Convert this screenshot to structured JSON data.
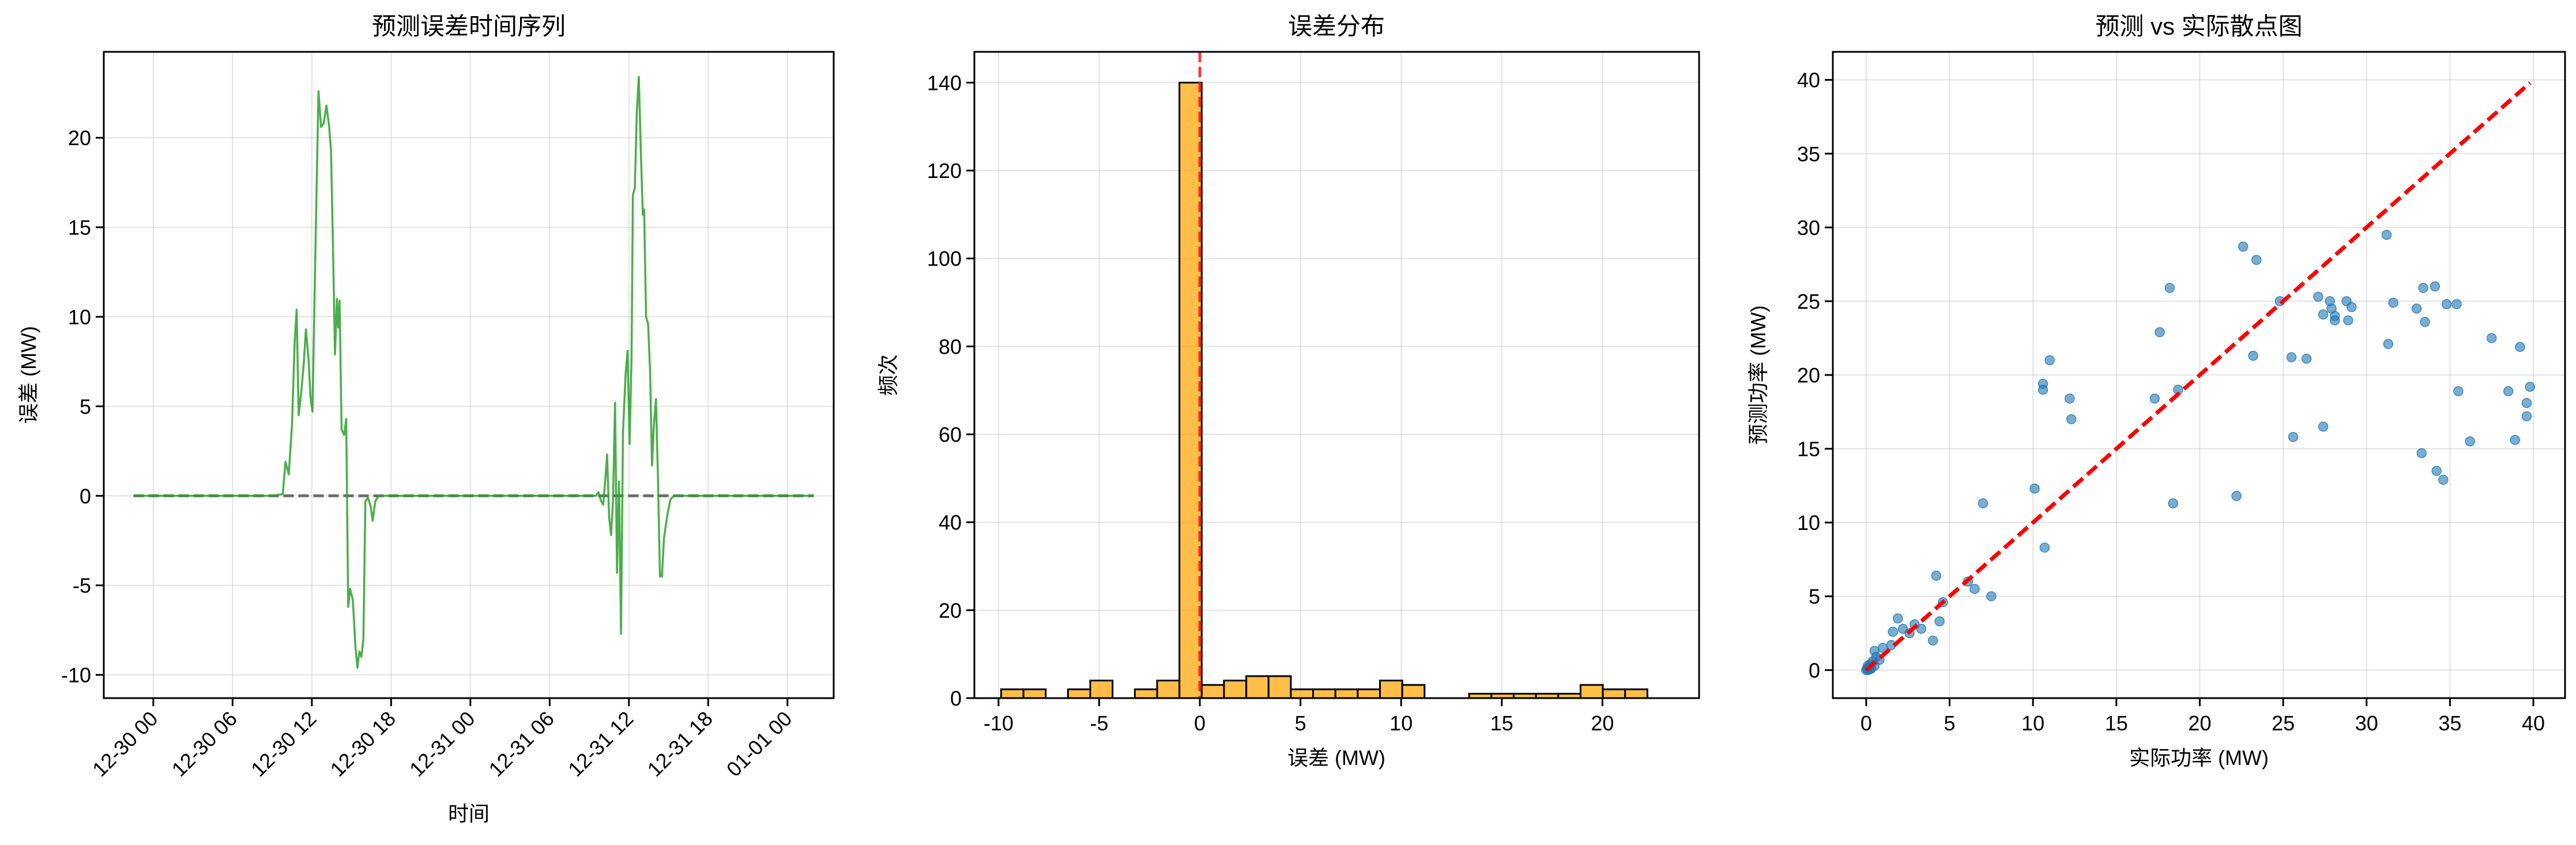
{
  "chart_data": [
    {
      "type": "line",
      "title": "预测误差时间序列",
      "xlabel": "时间",
      "ylabel": "误差 (MW)",
      "xlim": [
        -3.75,
        51.5
      ],
      "ylim": [
        -11.3,
        24.8
      ],
      "x_ticks": [
        0,
        6,
        12,
        18,
        24,
        30,
        36,
        42,
        48
      ],
      "x_tick_labels": [
        "12-30 00",
        "12-30 06",
        "12-30 12",
        "12-30 18",
        "12-31 00",
        "12-31 06",
        "12-31 12",
        "12-31 18",
        "01-01 00"
      ],
      "y_ticks": [
        -10,
        -5,
        0,
        5,
        10,
        15,
        20
      ],
      "y_tick_labels": [
        "-10",
        "-5",
        "0",
        "5",
        "10",
        "15",
        "20"
      ],
      "grid": true,
      "reference_line": {
        "y": 0,
        "style": "dashed",
        "color": "#000000"
      },
      "series": [
        {
          "color": "#2ca02c",
          "x_step_hours": 0.25,
          "x_start": -1.5,
          "points": [
            [
              -1.5,
              0
            ],
            [
              9.0,
              0
            ],
            [
              9.8,
              0.1
            ],
            [
              10.0,
              1.9
            ],
            [
              10.25,
              1.2
            ],
            [
              10.5,
              4.0
            ],
            [
              10.7,
              8.6
            ],
            [
              10.85,
              10.4
            ],
            [
              11.0,
              4.5
            ],
            [
              11.2,
              5.8
            ],
            [
              11.4,
              7.5
            ],
            [
              11.55,
              9.3
            ],
            [
              11.75,
              7.6
            ],
            [
              11.9,
              5.5
            ],
            [
              12.05,
              4.7
            ],
            [
              12.2,
              11.0
            ],
            [
              12.35,
              16.8
            ],
            [
              12.5,
              22.6
            ],
            [
              12.7,
              20.6
            ],
            [
              12.9,
              20.8
            ],
            [
              13.1,
              21.8
            ],
            [
              13.3,
              20.7
            ],
            [
              13.45,
              19.3
            ],
            [
              13.6,
              13.8
            ],
            [
              13.75,
              7.9
            ],
            [
              13.9,
              11.0
            ],
            [
              14.0,
              9.4
            ],
            [
              14.1,
              10.9
            ],
            [
              14.25,
              3.7
            ],
            [
              14.45,
              3.4
            ],
            [
              14.6,
              4.3
            ],
            [
              14.75,
              -6.2
            ],
            [
              14.9,
              -5.2
            ],
            [
              15.1,
              -5.8
            ],
            [
              15.3,
              -8.4
            ],
            [
              15.45,
              -9.6
            ],
            [
              15.6,
              -8.7
            ],
            [
              15.75,
              -9.0
            ],
            [
              15.9,
              -8.0
            ],
            [
              16.05,
              -0.3
            ],
            [
              16.25,
              -0.1
            ],
            [
              16.45,
              -0.6
            ],
            [
              16.6,
              -1.4
            ],
            [
              16.8,
              -0.3
            ],
            [
              17.0,
              -0.05
            ],
            [
              17.3,
              0
            ],
            [
              33.5,
              0
            ],
            [
              33.7,
              0.2
            ],
            [
              33.9,
              -0.3
            ],
            [
              34.05,
              -0.5
            ],
            [
              34.2,
              0.8
            ],
            [
              34.35,
              2.3
            ],
            [
              34.5,
              -1.2
            ],
            [
              34.65,
              -2.2
            ],
            [
              34.8,
              -0.2
            ],
            [
              34.95,
              5.2
            ],
            [
              35.1,
              -4.3
            ],
            [
              35.25,
              0.8
            ],
            [
              35.4,
              -7.7
            ],
            [
              35.55,
              3.5
            ],
            [
              35.75,
              6.8
            ],
            [
              35.9,
              8.1
            ],
            [
              36.05,
              2.9
            ],
            [
              36.2,
              7.8
            ],
            [
              36.3,
              16.8
            ],
            [
              36.45,
              17.2
            ],
            [
              36.6,
              21.5
            ],
            [
              36.75,
              23.4
            ],
            [
              36.9,
              19.3
            ],
            [
              37.05,
              15.7
            ],
            [
              37.15,
              16.0
            ],
            [
              37.3,
              10.0
            ],
            [
              37.45,
              9.6
            ],
            [
              37.6,
              7.0
            ],
            [
              37.75,
              1.7
            ],
            [
              37.9,
              4.1
            ],
            [
              38.05,
              5.4
            ],
            [
              38.2,
              1.0
            ],
            [
              38.35,
              -4.5
            ],
            [
              38.5,
              -4.5
            ],
            [
              38.65,
              -2.4
            ],
            [
              38.8,
              -1.6
            ],
            [
              38.95,
              -0.9
            ],
            [
              39.15,
              -0.2
            ],
            [
              39.4,
              0
            ],
            [
              50.0,
              0
            ]
          ]
        }
      ]
    },
    {
      "type": "bar",
      "subtype": "histogram",
      "title": "误差分布",
      "xlabel": "误差 (MW)",
      "ylabel": "频次",
      "xlim": [
        -11.2,
        24.8
      ],
      "ylim": [
        0,
        147
      ],
      "x_ticks": [
        -10,
        -5,
        0,
        5,
        10,
        15,
        20
      ],
      "x_tick_labels": [
        "-10",
        "-5",
        "0",
        "5",
        "10",
        "15",
        "20"
      ],
      "y_ticks": [
        0,
        20,
        40,
        60,
        80,
        100,
        120,
        140
      ],
      "y_tick_labels": [
        "0",
        "20",
        "40",
        "60",
        "80",
        "100",
        "120",
        "140"
      ],
      "grid": true,
      "reference_line": {
        "x": 0,
        "style": "dashed",
        "color": "#ff0000"
      },
      "color": "#ffa500",
      "edge_color": "#000000",
      "bin_start": -9.87,
      "bin_width": 1.107,
      "counts": [
        2,
        2,
        0,
        2,
        4,
        0,
        2,
        4,
        140,
        3,
        4,
        5,
        5,
        2,
        2,
        2,
        2,
        4,
        3,
        0,
        0,
        1,
        1,
        1,
        1,
        1,
        3,
        2,
        2
      ]
    },
    {
      "type": "scatter",
      "title": "预测 vs 实际散点图",
      "xlabel": "实际功率 (MW)",
      "ylabel": "预测功率 (MW)",
      "xlim": [
        -2.0,
        41.9
      ],
      "ylim": [
        -1.9,
        41.9
      ],
      "x_ticks": [
        0,
        5,
        10,
        15,
        20,
        25,
        30,
        35,
        40
      ],
      "x_tick_labels": [
        "0",
        "5",
        "10",
        "15",
        "20",
        "25",
        "30",
        "35",
        "40"
      ],
      "y_ticks": [
        0,
        5,
        10,
        15,
        20,
        25,
        30,
        35,
        40
      ],
      "y_tick_labels": [
        "0",
        "5",
        "10",
        "15",
        "20",
        "25",
        "30",
        "35",
        "40"
      ],
      "grid": true,
      "reference_line": {
        "from": [
          0,
          0
        ],
        "to": [
          39.8,
          39.8
        ],
        "style": "dashed",
        "color": "#ff0000"
      },
      "color": "#1f77b4",
      "points": [
        [
          0,
          0
        ],
        [
          0.05,
          0.1
        ],
        [
          0.1,
          0
        ],
        [
          0.15,
          0.2
        ],
        [
          0.2,
          0.05
        ],
        [
          0.1,
          0.3
        ],
        [
          0.25,
          0.4
        ],
        [
          0.3,
          0.1
        ],
        [
          0.4,
          0.6
        ],
        [
          0.5,
          0.3
        ],
        [
          0.6,
          0.9
        ],
        [
          0.5,
          1.3
        ],
        [
          0.8,
          0.7
        ],
        [
          1.0,
          1.5
        ],
        [
          1.5,
          1.7
        ],
        [
          1.6,
          2.6
        ],
        [
          1.9,
          3.5
        ],
        [
          2.2,
          2.8
        ],
        [
          2.6,
          2.5
        ],
        [
          2.9,
          3.1
        ],
        [
          3.3,
          2.8
        ],
        [
          4.0,
          2.0
        ],
        [
          4.2,
          6.4
        ],
        [
          4.4,
          3.3
        ],
        [
          4.6,
          4.6
        ],
        [
          6.1,
          6.0
        ],
        [
          6.5,
          5.5
        ],
        [
          7.0,
          11.3
        ],
        [
          7.5,
          5.0
        ],
        [
          10.1,
          12.3
        ],
        [
          10.6,
          19.4
        ],
        [
          10.6,
          19.0
        ],
        [
          10.7,
          8.3
        ],
        [
          11.0,
          21.0
        ],
        [
          12.2,
          18.4
        ],
        [
          12.3,
          17.0
        ],
        [
          17.3,
          18.4
        ],
        [
          17.6,
          22.9
        ],
        [
          18.2,
          25.9
        ],
        [
          18.4,
          11.3
        ],
        [
          18.7,
          19.0
        ],
        [
          22.2,
          11.8
        ],
        [
          22.6,
          28.7
        ],
        [
          23.2,
          21.3
        ],
        [
          23.4,
          27.8
        ],
        [
          24.8,
          25.0
        ],
        [
          25.5,
          21.2
        ],
        [
          25.6,
          15.8
        ],
        [
          26.4,
          21.1
        ],
        [
          27.1,
          25.3
        ],
        [
          27.4,
          16.5
        ],
        [
          27.4,
          24.1
        ],
        [
          27.8,
          25.0
        ],
        [
          27.9,
          24.5
        ],
        [
          28.1,
          24.0
        ],
        [
          28.1,
          23.7
        ],
        [
          28.8,
          25.0
        ],
        [
          28.9,
          23.7
        ],
        [
          29.1,
          24.6
        ],
        [
          31.2,
          29.5
        ],
        [
          31.3,
          22.1
        ],
        [
          31.6,
          24.9
        ],
        [
          33.0,
          24.5
        ],
        [
          33.4,
          25.9
        ],
        [
          33.5,
          23.6
        ],
        [
          33.3,
          14.7
        ],
        [
          34.1,
          26.0
        ],
        [
          34.2,
          13.5
        ],
        [
          34.6,
          12.9
        ],
        [
          34.8,
          24.8
        ],
        [
          35.4,
          24.8
        ],
        [
          35.5,
          18.9
        ],
        [
          36.2,
          15.5
        ],
        [
          37.5,
          22.5
        ],
        [
          38.5,
          18.9
        ],
        [
          38.9,
          15.6
        ],
        [
          39.2,
          21.9
        ],
        [
          39.6,
          18.1
        ],
        [
          39.6,
          17.2
        ],
        [
          39.8,
          19.2
        ]
      ]
    }
  ]
}
